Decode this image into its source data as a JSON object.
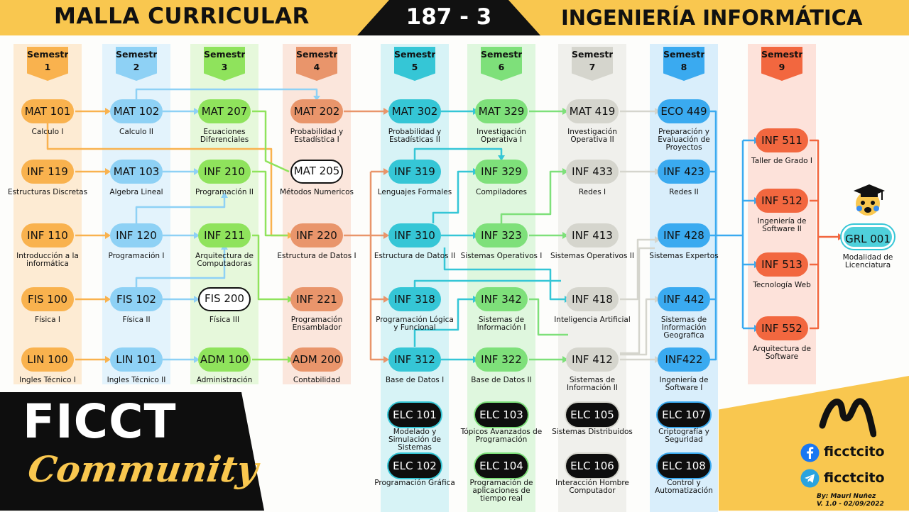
{
  "header": {
    "left_title": "MALLA CURRICULAR",
    "code": "187 - 3",
    "right_title": "INGENIERÍA INFORMÁTICA"
  },
  "semesters": [
    {
      "label": "Semestre",
      "num": "1",
      "color": "#f9b24e"
    },
    {
      "label": "Semestre",
      "num": "2",
      "color": "#8ed1f5"
    },
    {
      "label": "Semestre",
      "num": "3",
      "color": "#8fe35c"
    },
    {
      "label": "Semestre",
      "num": "4",
      "color": "#e9956b"
    },
    {
      "label": "Semestre",
      "num": "5",
      "color": "#35c6d6"
    },
    {
      "label": "Semestre",
      "num": "6",
      "color": "#7ee07a"
    },
    {
      "label": "Semestre",
      "num": "7",
      "color": "#d5d5cd"
    },
    {
      "label": "Semestre",
      "num": "8",
      "color": "#3aaaf0"
    },
    {
      "label": "Semestre",
      "num": "9",
      "color": "#f2673f"
    }
  ],
  "courses": [
    {
      "code": "MAT 101",
      "name": "Calculo I"
    },
    {
      "code": "INF 119",
      "name": "Estructuras Discretas"
    },
    {
      "code": "INF 110",
      "name": "Introducción a la informática"
    },
    {
      "code": "FIS 100",
      "name": "Física I"
    },
    {
      "code": "LIN 100",
      "name": "Ingles Técnico I"
    },
    {
      "code": "MAT 102",
      "name": "Calculo II"
    },
    {
      "code": "MAT 103",
      "name": "Algebra Lineal"
    },
    {
      "code": "INF 120",
      "name": "Programación I"
    },
    {
      "code": "FIS 102",
      "name": "Física II"
    },
    {
      "code": "LIN 101",
      "name": "Ingles Técnico II"
    },
    {
      "code": "MAT 207",
      "name": "Ecuaciones Diferenciales"
    },
    {
      "code": "INF 210",
      "name": "Programación II"
    },
    {
      "code": "INF 211",
      "name": "Arquitectura de Computadoras"
    },
    {
      "code": "FIS 200",
      "name": "Física III"
    },
    {
      "code": "ADM 100",
      "name": "Administración"
    },
    {
      "code": "MAT 202",
      "name": "Probabilidad y Estadística I"
    },
    {
      "code": "MAT 205",
      "name": "Métodos Numericos"
    },
    {
      "code": "INF 220",
      "name": "Estructura de Datos I"
    },
    {
      "code": "INF 221",
      "name": "Programación Ensamblador"
    },
    {
      "code": "ADM 200",
      "name": "Contabilidad"
    },
    {
      "code": "MAT 302",
      "name": "Probabilidad y Estadísticas II"
    },
    {
      "code": "INF 319",
      "name": "Lenguajes Formales"
    },
    {
      "code": "INF 310",
      "name": "Estructura de Datos II"
    },
    {
      "code": "INF 318",
      "name": "Programación Lógica y Funcional"
    },
    {
      "code": "INF 312",
      "name": "Base de Datos I"
    },
    {
      "code": "MAT 329",
      "name": "Investigación Operativa I"
    },
    {
      "code": "INF 329",
      "name": "Compiladores"
    },
    {
      "code": "INF 323",
      "name": "Sistemas Operativos I"
    },
    {
      "code": "INF 342",
      "name": "Sistemas de Información I"
    },
    {
      "code": "INF 322",
      "name": "Base de Datos II"
    },
    {
      "code": "MAT 419",
      "name": "Investigación Operativa II"
    },
    {
      "code": "INF 433",
      "name": "Redes I"
    },
    {
      "code": "INF 413",
      "name": "Sistemas Operativos II"
    },
    {
      "code": "INF 418",
      "name": "Inteligencia Artificial"
    },
    {
      "code": "INF 412",
      "name": "Sistemas de Información II"
    },
    {
      "code": "ECO 449",
      "name": "Preparación y Evaluación de Proyectos"
    },
    {
      "code": "INF 423",
      "name": "Redes II"
    },
    {
      "code": "INF 428",
      "name": "Sistemas Expertos"
    },
    {
      "code": "INF 442",
      "name": "Sistemas de Información Geografica"
    },
    {
      "code": "INF422",
      "name": "Ingeniería de Software I"
    },
    {
      "code": "INF 511",
      "name": "Taller de Grado I"
    },
    {
      "code": "INF 512",
      "name": "Ingeniería de Software II"
    },
    {
      "code": "INF 513",
      "name": "Tecnología Web"
    },
    {
      "code": "INF 552",
      "name": "Arquitectura de Software"
    },
    {
      "code": "GRL 001",
      "name": "Modalidad de Licenciatura"
    }
  ],
  "electives": [
    {
      "code": "ELC 101",
      "name": "Modelado y Simulación de Sistemas"
    },
    {
      "code": "ELC 103",
      "name": "Tópicos Avanzados de Programación"
    },
    {
      "code": "ELC 105",
      "name": "Sistemas Distribuidos"
    },
    {
      "code": "ELC 107",
      "name": "Criptografía y Seguridad"
    },
    {
      "code": "ELC 102",
      "name": "Programación Gráfica"
    },
    {
      "code": "ELC 104",
      "name": "Programación de aplicaciones de tiempo real"
    },
    {
      "code": "ELC 106",
      "name": "Interacción Hombre Computador"
    },
    {
      "code": "ELC 108",
      "name": "Control y Automatización"
    }
  ],
  "footer": {
    "brand_line1": "FICCT",
    "brand_line2": "Community",
    "facebook": "ficctcito",
    "telegram": "ficctcito",
    "credit_author": "By: Mauri Nuñez",
    "credit_version": "V. 1.0 - 02/09/2022"
  },
  "colors": {
    "yellow": "#f9c74f",
    "dark": "#0e0e0e"
  }
}
